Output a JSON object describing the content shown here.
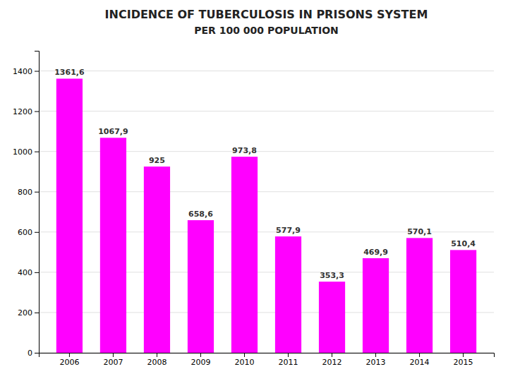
{
  "chart_data": {
    "type": "bar",
    "title": "INCIDENCE OF TUBERCULOSIS IN PRISONS SYSTEM",
    "subtitle": "PER 100 000 POPULATION",
    "categories": [
      "2006",
      "2007",
      "2008",
      "2009",
      "2010",
      "2011",
      "2012",
      "2013",
      "2014",
      "2015"
    ],
    "values": [
      1361.6,
      1067.9,
      925.0,
      658.6,
      973.8,
      577.9,
      353.3,
      469.9,
      570.1,
      510.4
    ],
    "value_labels": [
      "1361,6",
      "1067,9",
      "925",
      "658,6",
      "973,8",
      "577,9",
      "353,3",
      "469,9",
      "570,1",
      "510,4"
    ],
    "data_labels": true,
    "color": "#FF00FF",
    "ylim": [
      0,
      1500
    ],
    "yticks": [
      0,
      200,
      400,
      600,
      800,
      1000,
      1200,
      1400
    ],
    "grid": true
  }
}
